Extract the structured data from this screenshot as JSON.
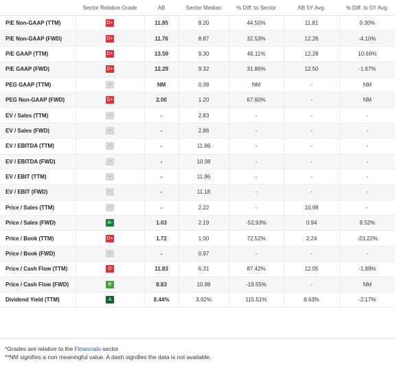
{
  "headers": [
    "",
    "Sector Relative Grade",
    "AB",
    "Sector Median",
    "% Diff. to Sector",
    "AB 5Y Avg.",
    "% Diff. to 5Y Avg."
  ],
  "rows": [
    {
      "metric": "P/E Non-GAAP (TTM)",
      "grade": "D+",
      "ab": "11.85",
      "median": "8.20",
      "diff_sector": "44.50%",
      "avg5y": "11.81",
      "diff_5y": "0.30%"
    },
    {
      "metric": "P/E Non-GAAP (FWD)",
      "grade": "D+",
      "ab": "11.76",
      "median": "8.87",
      "diff_sector": "32.53%",
      "avg5y": "12.26",
      "diff_5y": "-4.10%"
    },
    {
      "metric": "P/E GAAP (TTM)",
      "grade": "D+",
      "ab": "13.59",
      "median": "9.30",
      "diff_sector": "46.11%",
      "avg5y": "12.28",
      "diff_5y": "10.69%"
    },
    {
      "metric": "P/E GAAP (FWD)",
      "grade": "D+",
      "ab": "12.29",
      "median": "9.32",
      "diff_sector": "31.86%",
      "avg5y": "12.50",
      "diff_5y": "-1.67%"
    },
    {
      "metric": "PEG GAAP (TTM)",
      "grade": "-",
      "ab": "NM",
      "median": "0.38",
      "diff_sector": "NM",
      "avg5y": "-",
      "diff_5y": "NM"
    },
    {
      "metric": "PEG Non-GAAP (FWD)",
      "grade": "D+",
      "ab": "2.00",
      "median": "1.20",
      "diff_sector": "67.60%",
      "avg5y": "-",
      "diff_5y": "NM"
    },
    {
      "metric": "EV / Sales (TTM)",
      "grade": "-",
      "ab": "-",
      "median": "2.83",
      "diff_sector": "-",
      "avg5y": "-",
      "diff_5y": "-"
    },
    {
      "metric": "EV / Sales (FWD)",
      "grade": "-",
      "ab": "-",
      "median": "2.86",
      "diff_sector": "-",
      "avg5y": "-",
      "diff_5y": "-"
    },
    {
      "metric": "EV / EBITDA (TTM)",
      "grade": "-",
      "ab": "-",
      "median": "11.86",
      "diff_sector": "-",
      "avg5y": "-",
      "diff_5y": "-"
    },
    {
      "metric": "EV / EBITDA (FWD)",
      "grade": "-",
      "ab": "-",
      "median": "10.38",
      "diff_sector": "-",
      "avg5y": "-",
      "diff_5y": "-"
    },
    {
      "metric": "EV / EBIT (TTM)",
      "grade": "-",
      "ab": "-",
      "median": "11.96",
      "diff_sector": "-",
      "avg5y": "-",
      "diff_5y": "-"
    },
    {
      "metric": "EV / EBIT (FWD)",
      "grade": "-",
      "ab": "-",
      "median": "11.18",
      "diff_sector": "-",
      "avg5y": "-",
      "diff_5y": "-"
    },
    {
      "metric": "Price / Sales (TTM)",
      "grade": "-",
      "ab": "-",
      "median": "2.22",
      "diff_sector": "-",
      "avg5y": "10.98",
      "diff_5y": "-"
    },
    {
      "metric": "Price / Sales (FWD)",
      "grade": "A-",
      "ab": "1.03",
      "median": "2.19",
      "diff_sector": "-52.93%",
      "avg5y": "0.94",
      "diff_5y": "9.52%"
    },
    {
      "metric": "Price / Book (TTM)",
      "grade": "D+",
      "ab": "1.72",
      "median": "1.00",
      "diff_sector": "72.52%",
      "avg5y": "2.24",
      "diff_5y": "-23.22%"
    },
    {
      "metric": "Price / Book (FWD)",
      "grade": "-",
      "ab": "-",
      "median": "0.97",
      "diff_sector": "-",
      "avg5y": "-",
      "diff_5y": "-"
    },
    {
      "metric": "Price / Cash Flow (TTM)",
      "grade": "D",
      "ab": "11.83",
      "median": "6.31",
      "diff_sector": "87.42%",
      "avg5y": "12.05",
      "diff_5y": "-1.89%"
    },
    {
      "metric": "Price / Cash Flow (FWD)",
      "grade": "B",
      "ab": "8.83",
      "median": "10.98",
      "diff_sector": "-19.55%",
      "avg5y": "-",
      "diff_5y": "NM"
    },
    {
      "metric": "Dividend Yield (TTM)",
      "grade": "A",
      "ab": "8.44%",
      "median": "3.92%",
      "diff_sector": "115.51%",
      "avg5y": "8.63%",
      "diff_5y": "-2.17%"
    }
  ],
  "grade_colors": {
    "D+": "#e2303b",
    "D": "#e2303b",
    "A-": "#1b7f3f",
    "B": "#46a03f",
    "A": "#13602e",
    "-": "#d8d8d8"
  },
  "footnote": {
    "line1_prefix": "*Grades are relative to the ",
    "line1_link": "Financials",
    "line1_suffix": " sector",
    "line2": "**NM signifies a non meaningful value. A dash signifies the data is not available."
  }
}
